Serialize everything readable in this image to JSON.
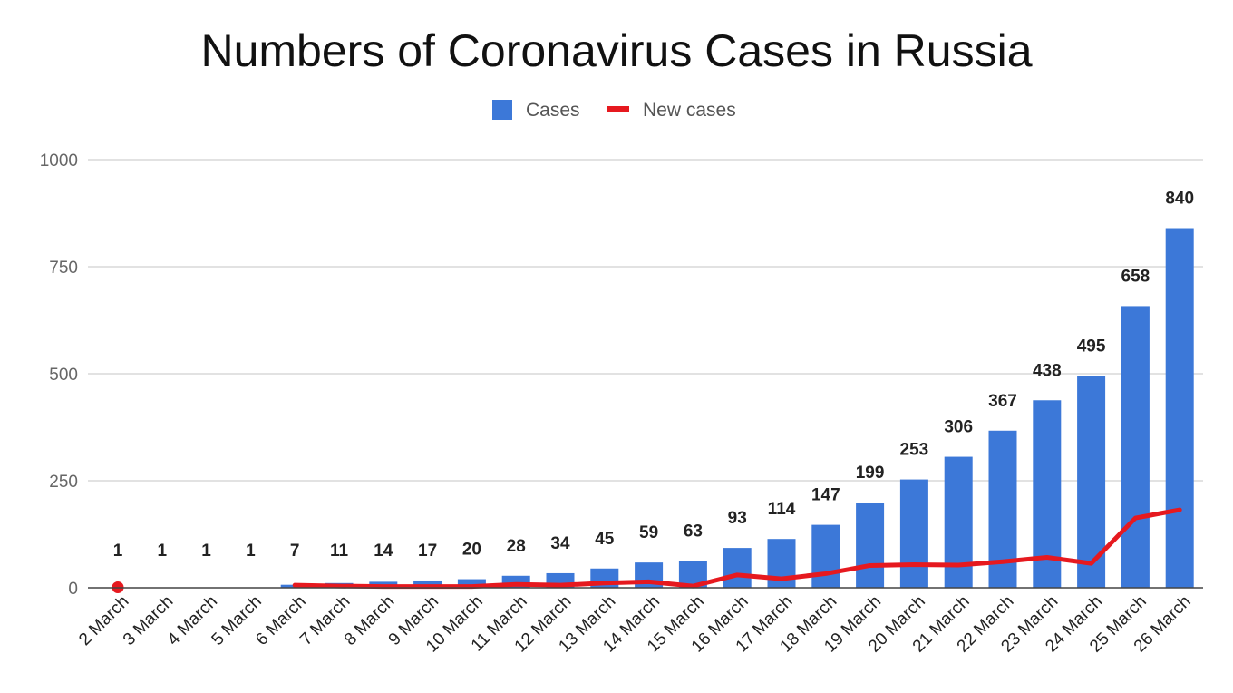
{
  "chart_data": {
    "type": "bar",
    "title": "Numbers of Coronavirus Cases in Russia",
    "xlabel": "",
    "ylabel": "",
    "ylim": [
      0,
      1000
    ],
    "yticks": [
      0,
      250,
      500,
      750,
      1000
    ],
    "grid": true,
    "legend_position": "top",
    "categories": [
      "2 March",
      "3 March",
      "4 March",
      "5 March",
      "6 March",
      "7 March",
      "8 March",
      "9 March",
      "10 March",
      "11 March",
      "12 March",
      "13 March",
      "14 March",
      "15 March",
      "16 March",
      "17 March",
      "18 March",
      "19 March",
      "20 March",
      "21 March",
      "22 March",
      "23 March",
      "24 March",
      "25 March",
      "26 March"
    ],
    "series": [
      {
        "name": "Cases",
        "type": "bar",
        "color": "#3c78d8",
        "values": [
          1,
          1,
          1,
          1,
          7,
          11,
          14,
          17,
          20,
          28,
          34,
          45,
          59,
          63,
          93,
          114,
          147,
          199,
          253,
          306,
          367,
          438,
          495,
          658,
          840
        ],
        "labels": [
          "1",
          "1",
          "1",
          "1",
          "7",
          "11",
          "14",
          "17",
          "20",
          "28",
          "34",
          "45",
          "59",
          "63",
          "93",
          "114",
          "147",
          "199",
          "253",
          "306",
          "367",
          "438",
          "495",
          "658",
          "840"
        ]
      },
      {
        "name": "New cases",
        "type": "line",
        "color": "#e6191f",
        "values": [
          1,
          null,
          null,
          null,
          6,
          4,
          3,
          3,
          3,
          8,
          6,
          11,
          14,
          4,
          30,
          21,
          33,
          52,
          54,
          53,
          61,
          71,
          57,
          163,
          182
        ]
      }
    ]
  }
}
